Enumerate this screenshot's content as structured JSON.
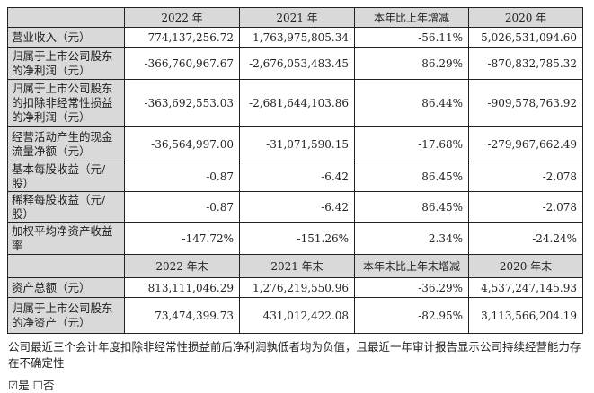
{
  "table1": {
    "headers": [
      "",
      "2022 年",
      "2021 年",
      "本年比上年增减",
      "2020 年"
    ],
    "rows": [
      {
        "label": "营业收入（元）",
        "values": [
          "774,137,256.72",
          "1,763,975,805.34",
          "-56.11%",
          "5,026,531,094.60"
        ]
      },
      {
        "label": "归属于上市公司股东的净利润（元）",
        "values": [
          "-366,760,967.67",
          "-2,676,053,483.45",
          "86.29%",
          "-870,832,785.32"
        ]
      },
      {
        "label": "归属于上市公司股东的扣除非经常性损益的净利润（元）",
        "values": [
          "-363,692,553.03",
          "-2,681,644,103.86",
          "86.44%",
          "-909,578,763.92"
        ]
      },
      {
        "label": "经营活动产生的现金流量净额（元）",
        "values": [
          "-36,564,997.00",
          "-31,071,590.15",
          "-17.68%",
          "-279,967,662.49"
        ]
      },
      {
        "label": "基本每股收益（元/股）",
        "values": [
          "-0.87",
          "-6.42",
          "86.45%",
          "-2.078"
        ]
      },
      {
        "label": "稀释每股收益（元/股）",
        "values": [
          "-0.87",
          "-6.42",
          "86.45%",
          "-2.078"
        ]
      },
      {
        "label": "加权平均净资产收益率",
        "values": [
          "-147.72%",
          "-151.26%",
          "2.34%",
          "-24.24%"
        ]
      }
    ]
  },
  "table2": {
    "headers": [
      "",
      "2022 年末",
      "2021 年末",
      "本年末比上年末增减",
      "2020 年末"
    ],
    "rows": [
      {
        "label": "资产总额（元）",
        "values": [
          "813,111,046.29",
          "1,276,219,550.96",
          "-36.29%",
          "4,537,247,145.93"
        ]
      },
      {
        "label": "归属于上市公司股东的净资产（元）",
        "values": [
          "73,474,399.73",
          "431,012,422.08",
          "-82.95%",
          "3,113,566,204.19"
        ]
      }
    ]
  },
  "note": "公司最近三个会计年度扣除非经常性损益前后净利润孰低者均为负值，且最近一年审计报告显示公司持续经营能力存在不确定性",
  "choice": {
    "yes_mark": "☑",
    "yes_label": "是",
    "no_mark": "☐",
    "no_label": "否",
    "selected": "是"
  }
}
